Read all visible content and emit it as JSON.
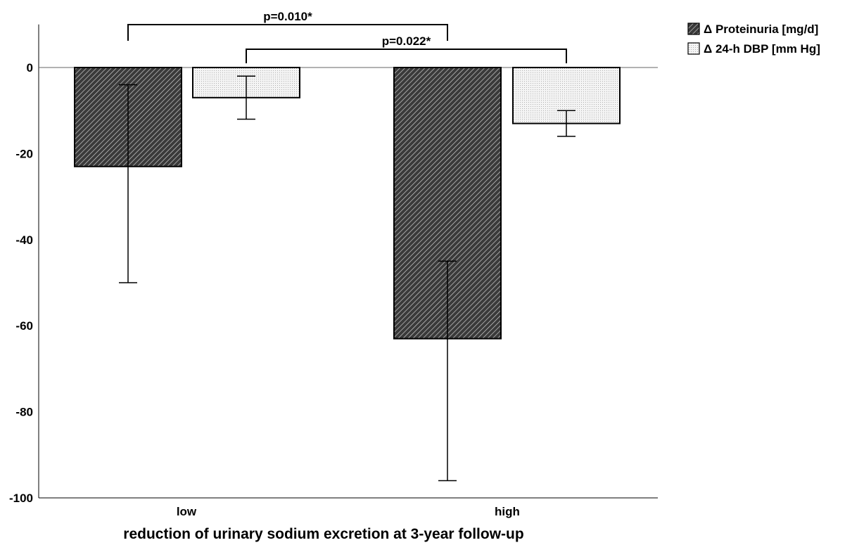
{
  "chart_data": {
    "type": "bar",
    "title": "",
    "xlabel": "reduction of urinary sodium excretion at 3-year follow-up",
    "ylabel": "",
    "categories": [
      "low",
      "high"
    ],
    "ylim": [
      -100,
      10
    ],
    "yticks": [
      0,
      -20,
      -40,
      -60,
      -80,
      -100
    ],
    "grid": false,
    "legend_position": "top-right, outside plot",
    "series": [
      {
        "name": "Δ Proteinuria [mg/d]",
        "values": [
          -23,
          -63
        ],
        "error_low": [
          -50,
          -96
        ],
        "error_high": [
          -4,
          -45
        ],
        "fill": "diagonal-hatch",
        "color": "#333333"
      },
      {
        "name": "Δ 24-h DBP [mm Hg]",
        "values": [
          -7,
          -13
        ],
        "error_low": [
          -12,
          -16
        ],
        "error_high": [
          -2,
          -10
        ],
        "fill": "dotted",
        "color": "#f2f2f2"
      }
    ],
    "annotations": [
      {
        "text": "p=0.010*",
        "from_category": "low",
        "from_series": 0,
        "to_category": "high",
        "to_series": 0
      },
      {
        "text": "p=0.022*",
        "from_category": "low",
        "from_series": 1,
        "to_category": "high",
        "to_series": 1
      }
    ]
  }
}
